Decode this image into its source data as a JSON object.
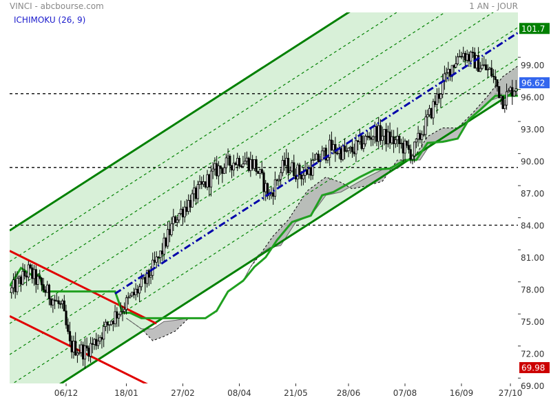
{
  "header": {
    "title": "VINCI - abcbourse.com",
    "period": "1 AN - JOUR",
    "indicator": "ICHIMOKU (26, 9)"
  },
  "chart_data": {
    "type": "candlestick",
    "ylim": [
      68.5,
      103.2
    ],
    "x_count": 270,
    "y_ticks": [
      "69.00",
      "72.00",
      "75.00",
      "78.00",
      "81.00",
      "84.00",
      "87.00",
      "90.00",
      "93.00",
      "96.00",
      "99.00"
    ],
    "x_ticks": [
      {
        "label": "06/12",
        "i": 30
      },
      {
        "label": "18/01",
        "i": 62
      },
      {
        "label": "27/02",
        "i": 92
      },
      {
        "label": "08/04",
        "i": 122
      },
      {
        "label": "21/05",
        "i": 152
      },
      {
        "label": "28/06",
        "i": 180
      },
      {
        "label": "07/08",
        "i": 210
      },
      {
        "label": "16/09",
        "i": 240
      },
      {
        "label": "27/10",
        "i": 266
      }
    ],
    "price_badges": [
      {
        "value": "101.7",
        "y": 101.7,
        "color": "#008000"
      },
      {
        "value": "96.62",
        "y": 96.62,
        "color": "#3366ee"
      },
      {
        "value": "69.98",
        "y": 69.98,
        "color": "#cc0000"
      }
    ],
    "horizontal_levels": [
      95.6,
      88.7,
      83.3
    ],
    "channel_up": {
      "i1": 0,
      "y1": 65.4,
      "i2": 270,
      "y2": 96.0,
      "offsets": [
        0,
        2.9,
        5.8,
        8.7,
        11.6,
        14.5,
        17.4
      ],
      "color": "#008000",
      "fill": "#d8f0d8"
    },
    "trend_line": {
      "i1": 56,
      "y1": 76.9,
      "i2": 270,
      "y2": 101.3,
      "color": "#0000aa"
    },
    "channel_down": {
      "i1": 0,
      "y1": 80.9,
      "i2": 78,
      "y2": 74.1,
      "offset": 6.1,
      "color": "#e00000"
    },
    "cloud_upper": [
      [
        62,
        74.6
      ],
      [
        70,
        73.6
      ],
      [
        76,
        72.5
      ],
      [
        82,
        72.9
      ],
      [
        88,
        73.4
      ],
      [
        95,
        74.6
      ],
      [
        104,
        74.6
      ],
      [
        110,
        75.2
      ],
      [
        116,
        77.1
      ],
      [
        124,
        78.1
      ],
      [
        128,
        79.4
      ],
      [
        132,
        80.3
      ],
      [
        140,
        82.3
      ],
      [
        148,
        83.8
      ],
      [
        158,
        86.5
      ],
      [
        168,
        87.8
      ],
      [
        176,
        87.3
      ],
      [
        182,
        86.7
      ],
      [
        190,
        87.0
      ],
      [
        198,
        87.4
      ],
      [
        206,
        89.4
      ],
      [
        214,
        89.4
      ],
      [
        222,
        91.6
      ],
      [
        230,
        92.4
      ],
      [
        238,
        92.4
      ],
      [
        246,
        93.8
      ],
      [
        254,
        95.4
      ],
      [
        262,
        97.2
      ],
      [
        270,
        98.2
      ]
    ],
    "cloud_lower": [
      [
        62,
        74.6
      ],
      [
        70,
        73.6
      ],
      [
        76,
        73.6
      ],
      [
        82,
        74.3
      ],
      [
        88,
        74.4
      ],
      [
        95,
        74.6
      ],
      [
        104,
        74.6
      ],
      [
        110,
        75.3
      ],
      [
        116,
        77.1
      ],
      [
        124,
        78.1
      ],
      [
        128,
        79.4
      ],
      [
        132,
        80.5
      ],
      [
        138,
        81.2
      ],
      [
        144,
        81.4
      ],
      [
        152,
        83.6
      ],
      [
        160,
        84.2
      ],
      [
        168,
        86.1
      ],
      [
        176,
        86.4
      ],
      [
        184,
        87.2
      ],
      [
        190,
        87.8
      ],
      [
        198,
        88.5
      ],
      [
        206,
        88.6
      ],
      [
        212,
        89.4
      ],
      [
        218,
        89.4
      ],
      [
        224,
        91.0
      ],
      [
        232,
        91.1
      ],
      [
        238,
        91.4
      ],
      [
        244,
        93.2
      ],
      [
        250,
        94.1
      ],
      [
        256,
        95.0
      ],
      [
        262,
        95.4
      ],
      [
        270,
        95.4
      ]
    ],
    "kijun": [
      [
        0,
        77.6
      ],
      [
        6,
        79.3
      ],
      [
        12,
        78.6
      ],
      [
        16,
        78.6
      ],
      [
        18,
        77.1
      ],
      [
        26,
        77.1
      ],
      [
        40,
        77.1
      ],
      [
        52,
        77.1
      ],
      [
        56,
        77.1
      ],
      [
        60,
        75.1
      ],
      [
        64,
        75.1
      ],
      [
        70,
        74.6
      ],
      [
        82,
        74.6
      ],
      [
        92,
        74.6
      ],
      [
        104,
        74.6
      ],
      [
        110,
        75.3
      ],
      [
        116,
        77.1
      ],
      [
        124,
        78.1
      ],
      [
        130,
        79.4
      ],
      [
        136,
        80.3
      ],
      [
        142,
        81.9
      ],
      [
        150,
        83.6
      ],
      [
        160,
        84.2
      ],
      [
        166,
        86.1
      ],
      [
        172,
        86.4
      ],
      [
        180,
        87.2
      ],
      [
        186,
        87.8
      ],
      [
        194,
        88.5
      ],
      [
        202,
        88.6
      ],
      [
        210,
        89.4
      ],
      [
        216,
        89.4
      ],
      [
        222,
        91.0
      ],
      [
        230,
        91.1
      ],
      [
        238,
        91.4
      ],
      [
        244,
        93.2
      ],
      [
        250,
        94.1
      ],
      [
        258,
        95.4
      ],
      [
        270,
        95.4
      ]
    ],
    "prices": {
      "start": 77.0,
      "walk_seed": 12345
    }
  }
}
